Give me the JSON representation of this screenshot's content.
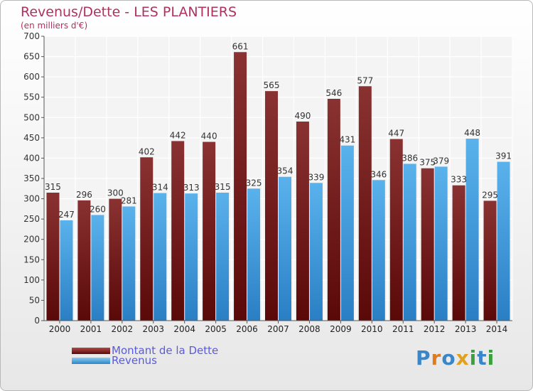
{
  "chart_data": {
    "type": "bar",
    "title": "Revenus/Dette - LES PLANTIERS",
    "subtitle": "(en milliers d'€)",
    "xlabel": "",
    "ylabel": "",
    "ylim": [
      0,
      700
    ],
    "y_ticks": [
      0,
      50,
      100,
      150,
      200,
      250,
      300,
      350,
      400,
      450,
      500,
      550,
      600,
      650,
      700
    ],
    "grid": true,
    "categories": [
      "2000",
      "2001",
      "2002",
      "2003",
      "2004",
      "2005",
      "2006",
      "2007",
      "2008",
      "2009",
      "2010",
      "2011",
      "2012",
      "2013",
      "2014"
    ],
    "series": [
      {
        "name": "Montant de la Dette",
        "color": "#7a1d1d",
        "values": [
          315,
          296,
          300,
          402,
          442,
          440,
          661,
          565,
          490,
          546,
          577,
          447,
          375,
          333,
          295
        ]
      },
      {
        "name": "Revenus",
        "color": "#4aa3e0",
        "values": [
          247,
          260,
          281,
          314,
          313,
          315,
          325,
          354,
          339,
          431,
          346,
          386,
          379,
          448,
          391
        ]
      }
    ],
    "legend_position": "bottom-left"
  },
  "logo": {
    "letters": [
      "P",
      "r",
      "o",
      "x",
      "i",
      "t",
      "i"
    ],
    "colors": [
      "#3a86c8",
      "#e07a1e",
      "#3a86c8",
      "#e0a020",
      "#3aa040",
      "#3a86c8",
      "#3aa040"
    ]
  }
}
